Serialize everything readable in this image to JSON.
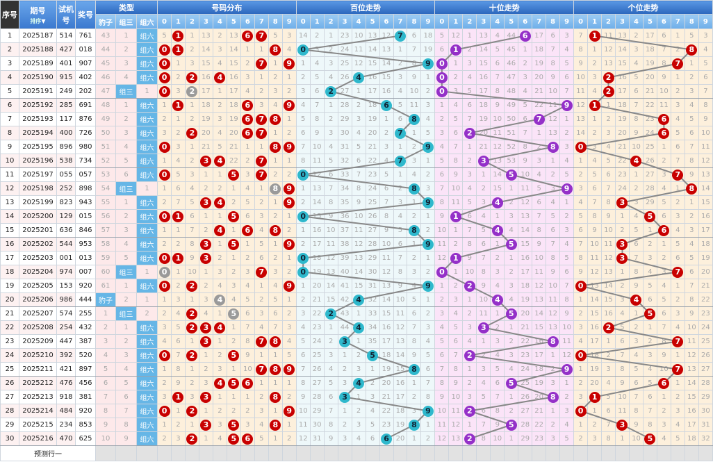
{
  "header": {
    "idx": "序号",
    "issue": "期号",
    "sort": "排序",
    "test": "试机号",
    "win": "奖号",
    "type": "类型",
    "type_cols": [
      "豹子",
      "组三",
      "组六"
    ],
    "dist": "号码分布",
    "hundreds": "百位走势",
    "tens": "十位走势",
    "units": "个位走势",
    "digits": [
      "0",
      "1",
      "2",
      "3",
      "4",
      "5",
      "6",
      "7",
      "8",
      "9"
    ]
  },
  "rows": [
    {
      "idx": "1",
      "issue": "2025187",
      "test": "514",
      "win": "761"
    },
    {
      "idx": "2",
      "issue": "2025188",
      "test": "427",
      "win": "018"
    },
    {
      "idx": "3",
      "issue": "2025189",
      "test": "401",
      "win": "907"
    },
    {
      "idx": "4",
      "issue": "2025190",
      "test": "915",
      "win": "402"
    },
    {
      "idx": "5",
      "issue": "2025191",
      "test": "249",
      "win": "202"
    },
    {
      "idx": "6",
      "issue": "2025192",
      "test": "285",
      "win": "691"
    },
    {
      "idx": "7",
      "issue": "2025193",
      "test": "117",
      "win": "876"
    },
    {
      "idx": "8",
      "issue": "2025194",
      "test": "400",
      "win": "726"
    },
    {
      "idx": "9",
      "issue": "2025195",
      "test": "896",
      "win": "980"
    },
    {
      "idx": "10",
      "issue": "2025196",
      "test": "538",
      "win": "734"
    },
    {
      "idx": "11",
      "issue": "2025197",
      "test": "055",
      "win": "057"
    },
    {
      "idx": "12",
      "issue": "2025198",
      "test": "252",
      "win": "898"
    },
    {
      "idx": "13",
      "issue": "2025199",
      "test": "823",
      "win": "943"
    },
    {
      "idx": "14",
      "issue": "2025200",
      "test": "129",
      "win": "015"
    },
    {
      "idx": "15",
      "issue": "2025201",
      "test": "636",
      "win": "846"
    },
    {
      "idx": "16",
      "issue": "2025202",
      "test": "544",
      "win": "953"
    },
    {
      "idx": "17",
      "issue": "2025203",
      "test": "001",
      "win": "013"
    },
    {
      "idx": "18",
      "issue": "2025204",
      "test": "974",
      "win": "007"
    },
    {
      "idx": "19",
      "issue": "2025205",
      "test": "153",
      "win": "920"
    },
    {
      "idx": "20",
      "issue": "2025206",
      "test": "986",
      "win": "444"
    },
    {
      "idx": "21",
      "issue": "2025207",
      "test": "574",
      "win": "255"
    },
    {
      "idx": "22",
      "issue": "2025208",
      "test": "254",
      "win": "432"
    },
    {
      "idx": "23",
      "issue": "2025209",
      "test": "447",
      "win": "387"
    },
    {
      "idx": "24",
      "issue": "2025210",
      "test": "392",
      "win": "520"
    },
    {
      "idx": "25",
      "issue": "2025211",
      "test": "421",
      "win": "897"
    },
    {
      "idx": "26",
      "issue": "2025212",
      "test": "476",
      "win": "456"
    },
    {
      "idx": "27",
      "issue": "2025213",
      "test": "918",
      "win": "381"
    },
    {
      "idx": "28",
      "issue": "2025214",
      "test": "484",
      "win": "920"
    },
    {
      "idx": "29",
      "issue": "2025215",
      "test": "234",
      "win": "853"
    },
    {
      "idx": "30",
      "issue": "2025216",
      "test": "470",
      "win": "625"
    }
  ],
  "first_row_omission": {
    "type": [
      43,
      1,
      null
    ],
    "dist": [
      5,
      null,
      1,
      13,
      2,
      13,
      null,
      null,
      5,
      3
    ],
    "hundreds": [
      14,
      2,
      1,
      23,
      10,
      13,
      12,
      null,
      6,
      18
    ],
    "tens": [
      5,
      12,
      1,
      13,
      4,
      44,
      null,
      17,
      6,
      3
    ],
    "units": [
      7,
      null,
      11,
      13,
      2,
      17,
      6,
      1,
      5,
      3
    ]
  },
  "prediction_row_label": "预测行一",
  "colors": {
    "header": "#2c67bd",
    "subheader": "#6eaee9",
    "ball_dist": "#c80000",
    "ball_repeat": "#9a9a9a",
    "ball_hundreds": "#2eb8cc",
    "ball_tens": "#9430c8",
    "ball_units": "#c80000",
    "trend_line": "#888888"
  }
}
